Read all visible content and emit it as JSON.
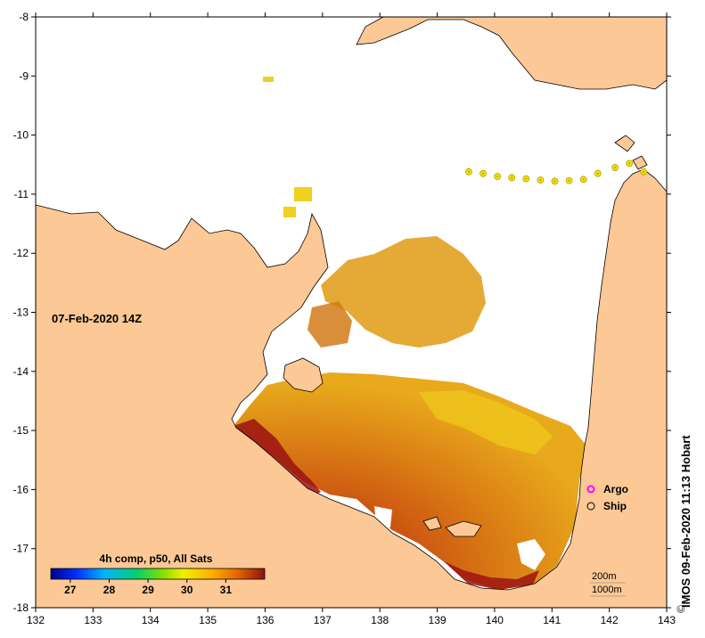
{
  "map": {
    "timestamp": "07-Feb-2020 14Z",
    "colorbar_title": "4h comp, p50, All Sats",
    "colorbar_ticks": [
      "27",
      "28",
      "29",
      "30",
      "31"
    ],
    "colorbar_range": [
      26.5,
      32
    ],
    "lon_ticks": [
      "132",
      "133",
      "134",
      "135",
      "136",
      "137",
      "138",
      "139",
      "140",
      "141",
      "142",
      "143"
    ],
    "lat_ticks": [
      "-8",
      "-9",
      "-10",
      "-11",
      "-12",
      "-13",
      "-14",
      "-15",
      "-16",
      "-17",
      "-18"
    ],
    "lon_range": [
      132,
      143
    ],
    "lat_range": [
      -18,
      -8
    ],
    "legend": [
      {
        "label": "Argo",
        "color": "#ff00ff"
      },
      {
        "label": "Ship",
        "color": "#000000"
      }
    ],
    "contours": [
      "200m",
      "1000m"
    ],
    "credit": "IMOS 09-Feb-2020 11:13 Hobart",
    "colors": {
      "land": "#fcc895",
      "sea_no_data": "#ffffff",
      "sst_hot": "#a01010",
      "sst_warm": "#d66a10",
      "sst_mid": "#e6a520",
      "sst_cool": "#f2d020"
    },
    "ship_positions": [
      {
        "lon": 139.55,
        "lat": -10.62
      },
      {
        "lon": 139.8,
        "lat": -10.65
      },
      {
        "lon": 140.05,
        "lat": -10.7
      },
      {
        "lon": 140.3,
        "lat": -10.72
      },
      {
        "lon": 140.55,
        "lat": -10.74
      },
      {
        "lon": 140.8,
        "lat": -10.76
      },
      {
        "lon": 141.05,
        "lat": -10.78
      },
      {
        "lon": 141.3,
        "lat": -10.77
      },
      {
        "lon": 141.55,
        "lat": -10.75
      },
      {
        "lon": 141.8,
        "lat": -10.65
      },
      {
        "lon": 142.1,
        "lat": -10.55
      },
      {
        "lon": 142.35,
        "lat": -10.48
      },
      {
        "lon": 142.6,
        "lat": -10.62
      }
    ]
  }
}
